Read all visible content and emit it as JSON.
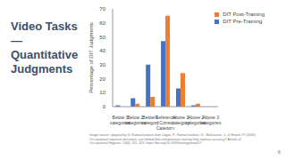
{
  "chart_data": {
    "type": "bar",
    "title": "Video Tasks—Quantitative Judgments",
    "y_label": "Percentage of DIT Judgments",
    "categories": [
      "Below 3 categories",
      "Below 2 categories",
      "Below 1 category",
      "Reference / Correct Category",
      "Above 1 category",
      "Above 2 categories",
      "Above 3 categories"
    ],
    "series": [
      {
        "name": "DIT Pre-Training",
        "color": "#4472c4",
        "values": [
          1,
          6,
          30,
          47,
          13,
          1,
          0
        ]
      },
      {
        "name": "DIT Post-Training",
        "color": "#ed7d31",
        "values": [
          0,
          2,
          7,
          65,
          24,
          2,
          0
        ]
      }
    ],
    "ylim": [
      0,
      70
    ],
    "yticks": [
      0,
      10,
      20,
      30,
      40,
      50,
      60,
      70
    ],
    "grid": false,
    "legend": "top-right"
  },
  "slide": {
    "source": "Image source: adapted by G. Ramachandran from Logan, P., Ramachandran, G., Mulhausen, J., & Hewett, P. (2009). Occupational exposure decisions: can limited data interpretation training help improve accuracy? Annals of Occupational Hygiene, 53(4), 311–323. https://doi.org/10.1093/annhyg/mep017",
    "page": "6"
  }
}
